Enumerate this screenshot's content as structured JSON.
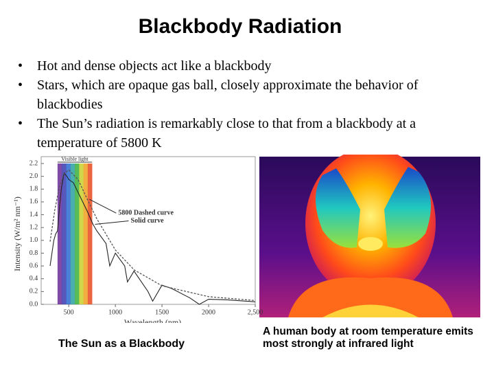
{
  "header": {
    "title": "Blackbody Radiation"
  },
  "bullets": [
    "Hot and dense objects act like a blackbody",
    "Stars, which are opaque gas ball, closely approximate the behavior of blackbodies",
    "The Sun’s radiation is remarkably close to that from a blackbody at a temperature of 5800 K"
  ],
  "chart_data": {
    "type": "line",
    "x_label": "Wavelength (nm)",
    "y_label": "Intensity (W/m² nm⁻¹)",
    "xlim": [
      300,
      2500
    ],
    "ylim": [
      0,
      2.2
    ],
    "xticks": [
      500,
      1000,
      1500,
      2000,
      {
        "value": 2500,
        "label": "2,500"
      }
    ],
    "yticks": [
      {
        "value": 0,
        "label": "0.0"
      },
      0.2,
      0.4,
      0.6,
      0.8,
      {
        "value": 1,
        "label": "1.0"
      },
      1.2,
      1.4,
      1.6,
      1.8,
      {
        "value": 2,
        "label": "2.0"
      },
      2.2
    ],
    "visible_label": "Visible light",
    "visible_band": [
      380,
      750
    ],
    "series": [
      {
        "name": "Solid curve",
        "color": "#222222",
        "dashed": false,
        "x": [
          300,
          320,
          340,
          360,
          380,
          400,
          420,
          450,
          480,
          500,
          550,
          600,
          700,
          760,
          800,
          900,
          940,
          1000,
          1100,
          1130,
          1200,
          1350,
          1400,
          1500,
          1600,
          1800,
          1900,
          2000,
          2200,
          2500
        ],
        "values": [
          0.6,
          0.8,
          1.0,
          1.1,
          1.15,
          1.5,
          1.8,
          2.05,
          2.0,
          1.95,
          1.9,
          1.75,
          1.45,
          1.25,
          1.15,
          0.95,
          0.6,
          0.8,
          0.6,
          0.35,
          0.52,
          0.2,
          0.05,
          0.3,
          0.25,
          0.1,
          0.0,
          0.08,
          0.07,
          0.04
        ]
      },
      {
        "name": "5800 Dashed curve",
        "color": "#555555",
        "dashed": true,
        "x": [
          300,
          350,
          400,
          450,
          500,
          600,
          700,
          800,
          1000,
          1200,
          1500,
          2000,
          2500
        ],
        "values": [
          0.98,
          1.47,
          1.84,
          2.04,
          2.1,
          1.95,
          1.64,
          1.34,
          0.85,
          0.54,
          0.29,
          0.12,
          0.06
        ]
      }
    ]
  },
  "captions": {
    "left": "The Sun as a Blackbody",
    "right": "A human body at room temperature emits most strongly at infrared light"
  }
}
